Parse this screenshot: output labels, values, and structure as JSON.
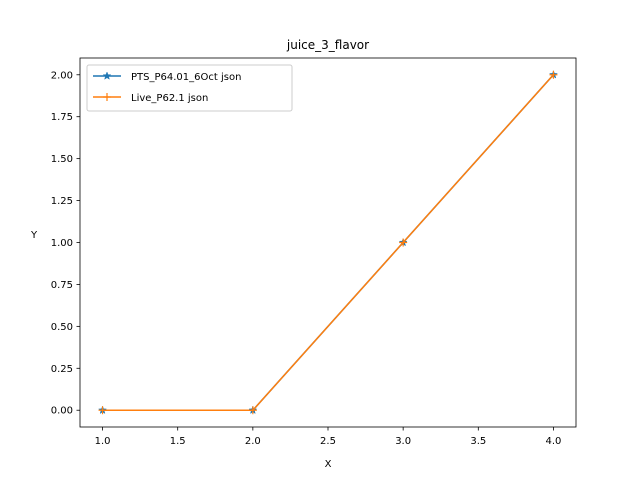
{
  "chart_data": {
    "type": "line",
    "title": "juice_3_flavor",
    "xlabel": "X",
    "ylabel": "Y",
    "x": [
      1.0,
      2.0,
      3.0,
      4.0
    ],
    "xlim": [
      0.85,
      4.15
    ],
    "ylim": [
      -0.1,
      2.1
    ],
    "xticks": [
      1.0,
      1.5,
      2.0,
      2.5,
      3.0,
      3.5,
      4.0
    ],
    "xtick_labels": [
      "1.0",
      "1.5",
      "2.0",
      "2.5",
      "3.0",
      "3.5",
      "4.0"
    ],
    "yticks": [
      0.0,
      0.25,
      0.5,
      0.75,
      1.0,
      1.25,
      1.5,
      1.75,
      2.0
    ],
    "ytick_labels": [
      "0.00",
      "0.25",
      "0.50",
      "0.75",
      "1.00",
      "1.25",
      "1.50",
      "1.75",
      "2.00"
    ],
    "grid": false,
    "legend_position": "top-left",
    "series": [
      {
        "name": "PTS_P64.01_6Oct json",
        "values": [
          0,
          0,
          1,
          2
        ],
        "color": "#1f77b4",
        "marker": "star"
      },
      {
        "name": "Live_P62.1 json",
        "values": [
          0,
          0,
          1,
          2
        ],
        "color": "#ff7f0e",
        "marker": "plus"
      }
    ]
  }
}
